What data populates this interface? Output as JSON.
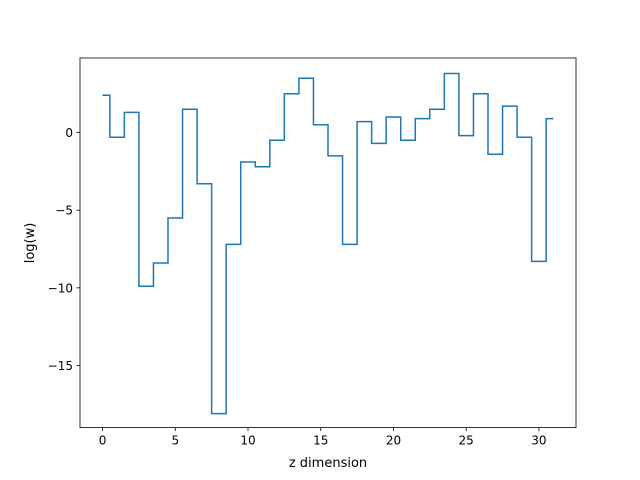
{
  "chart_data": {
    "type": "line",
    "drawstyle": "steps-mid",
    "xlabel": "z dimension",
    "ylabel": "log(w)",
    "xlim": [
      -1.55,
      32.55
    ],
    "ylim": [
      -19.0,
      4.8
    ],
    "xticks": [
      0,
      5,
      10,
      15,
      20,
      25,
      30
    ],
    "xtick_labels": [
      "0",
      "5",
      "10",
      "15",
      "20",
      "25",
      "30"
    ],
    "yticks": [
      0,
      -5,
      -10,
      -15
    ],
    "ytick_labels": [
      "0",
      "−5",
      "−10",
      "−15"
    ],
    "grid": false,
    "legend": "none",
    "series": [
      {
        "color": "#1f77b4",
        "x": [
          0,
          1,
          2,
          3,
          4,
          5,
          6,
          7,
          8,
          9,
          10,
          11,
          12,
          13,
          14,
          15,
          16,
          17,
          18,
          19,
          20,
          21,
          22,
          23,
          24,
          25,
          26,
          27,
          28,
          29,
          30,
          31
        ],
        "y": [
          2.4,
          -0.3,
          1.3,
          -9.9,
          -8.4,
          -5.5,
          1.5,
          -3.3,
          -18.1,
          -7.2,
          -1.9,
          -2.2,
          -0.5,
          2.5,
          3.5,
          0.5,
          -1.5,
          -7.2,
          0.7,
          -0.7,
          1.0,
          -0.5,
          0.9,
          1.5,
          3.8,
          -0.2,
          2.5,
          -1.4,
          1.7,
          -0.3,
          -8.3,
          0.9
        ]
      }
    ]
  }
}
